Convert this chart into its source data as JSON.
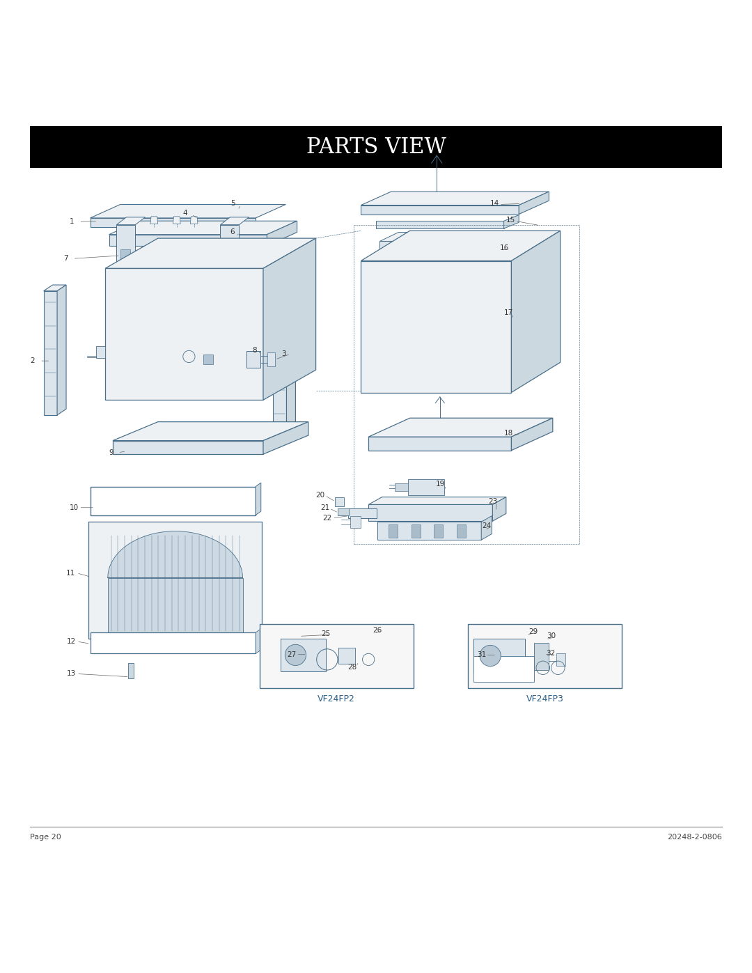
{
  "title": "PARTS VIEW",
  "title_bg": "#000000",
  "title_color": "#ffffff",
  "footer_left": "Page 20",
  "footer_right": "20248-2-0806",
  "line_color": "#4a6f8a",
  "label_color": "#222222",
  "bg_color": "#ffffff",
  "vf24fp2_label": "VF24FP2",
  "vf24fp3_label": "VF24FP3",
  "face_light": "#edf1f4",
  "face_mid": "#dce5ec",
  "face_dark": "#ccd8e0",
  "face_inner": "#dce8f0"
}
